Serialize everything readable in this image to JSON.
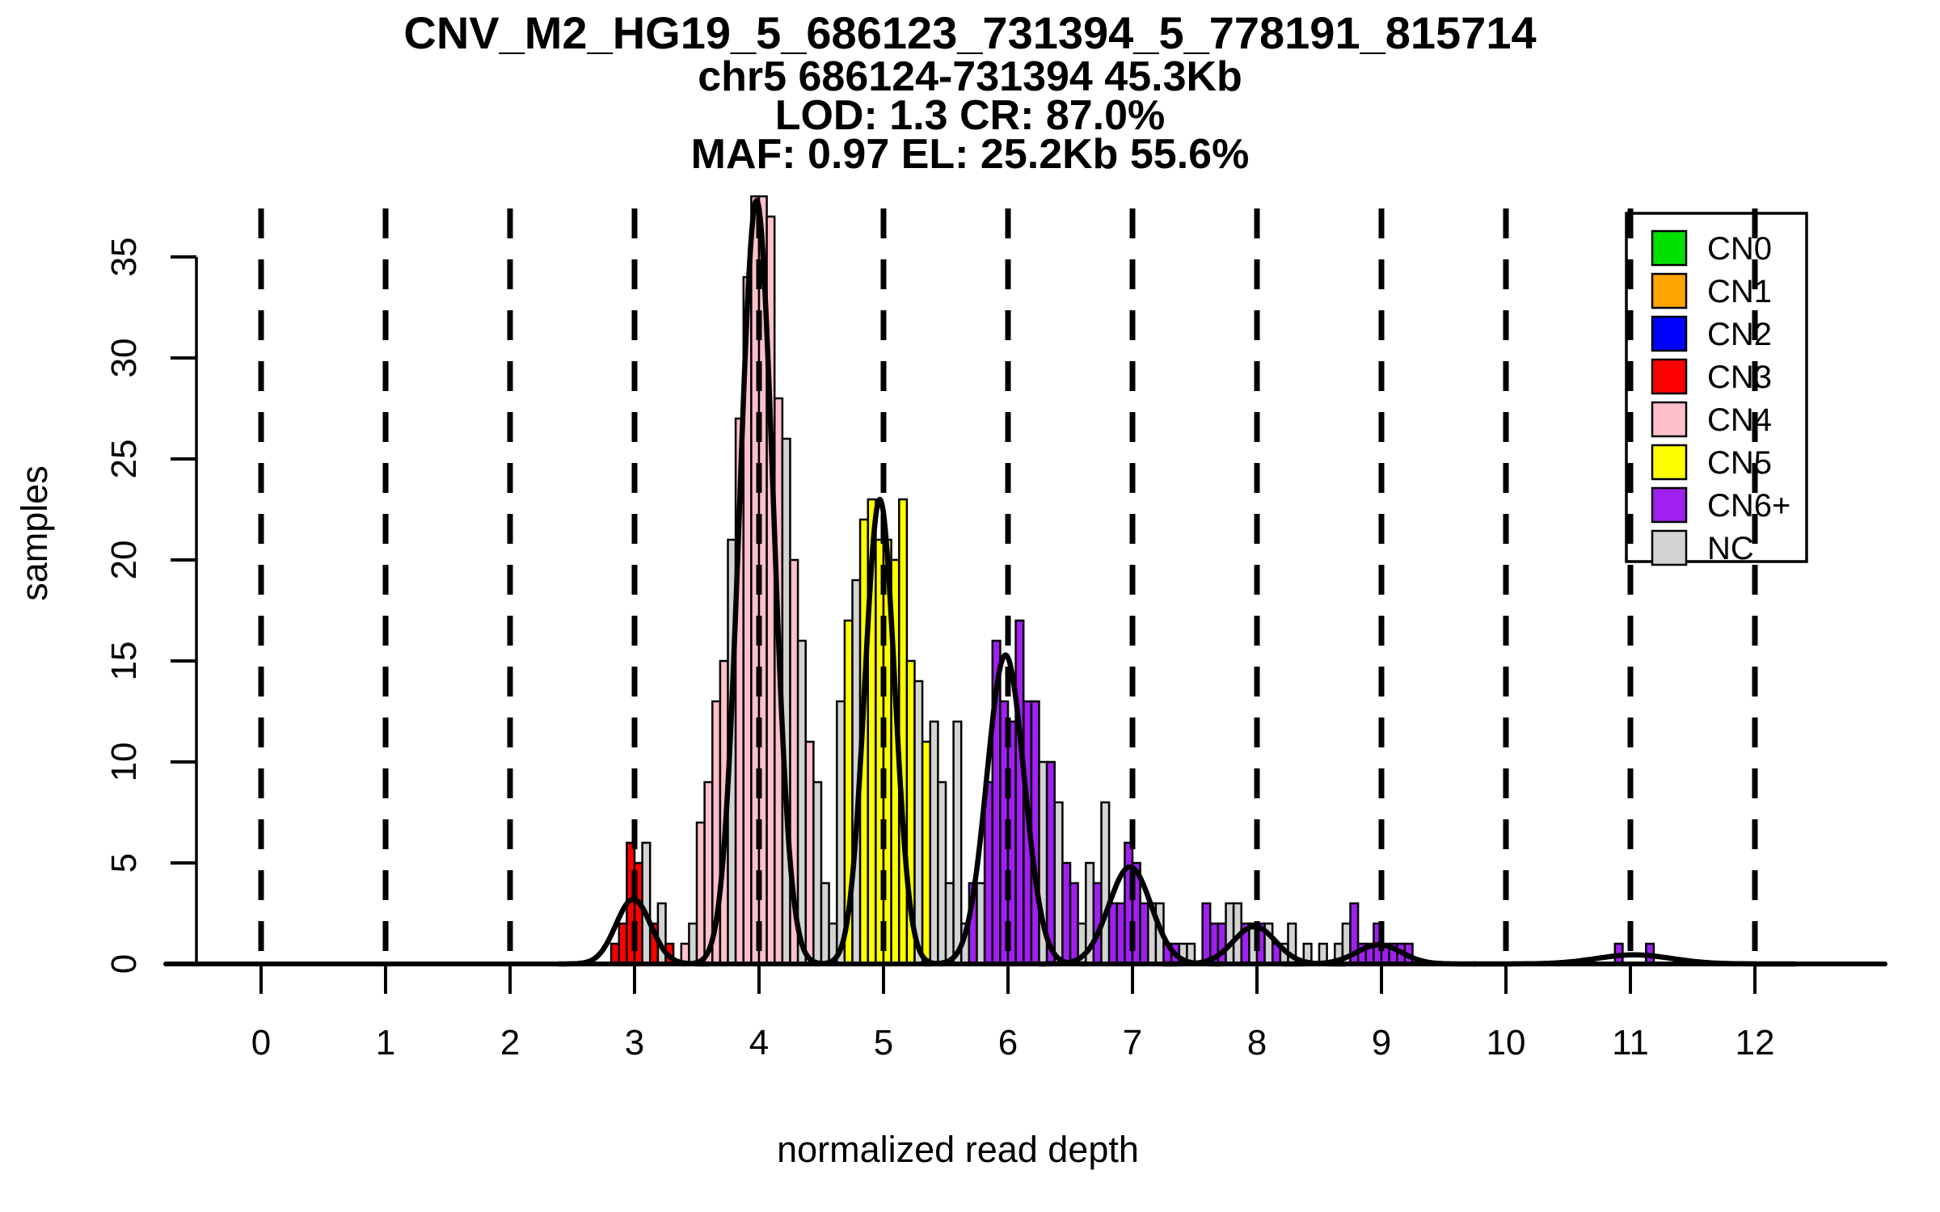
{
  "title": {
    "line1": "CNV_M2_HG19_5_686123_731394_5_778191_815714",
    "line2": "chr5 686124-731394 45.3Kb",
    "line3": "LOD: 1.3 CR: 87.0%",
    "line4": "MAF: 0.97 EL: 25.2Kb 55.6%"
  },
  "axes": {
    "x": {
      "label": "normalized read depth",
      "ticks": [
        0,
        1,
        2,
        3,
        4,
        5,
        6,
        7,
        8,
        9,
        10,
        11,
        12
      ]
    },
    "y": {
      "label": "samples",
      "ticks": [
        0,
        5,
        10,
        15,
        20,
        25,
        30,
        35
      ]
    }
  },
  "legend": {
    "items": [
      {
        "label": "CN0",
        "color": "#00E000"
      },
      {
        "label": "CN1",
        "color": "#FFA500"
      },
      {
        "label": "CN2",
        "color": "#0000FF"
      },
      {
        "label": "CN3",
        "color": "#FF0000"
      },
      {
        "label": "CN4",
        "color": "#FFC0CB"
      },
      {
        "label": "CN5",
        "color": "#FFFF00"
      },
      {
        "label": "CN6+",
        "color": "#A020F0"
      },
      {
        "label": "NC",
        "color": "#D3D3D3"
      }
    ]
  },
  "chart_data": {
    "type": "bar",
    "subtype": "histogram_with_density_curves",
    "xlabel": "normalized read depth",
    "ylabel": "samples",
    "xlim": [
      -0.8,
      13.1
    ],
    "ylim": [
      0,
      38.5
    ],
    "grid": "vertical dashed lines at every integer x from 0 to 12",
    "legend_position": "top-right",
    "bin_width": 0.0625,
    "colors": {
      "CN0": "#00E000",
      "CN1": "#FFA500",
      "CN2": "#0000FF",
      "CN3": "#FF0000",
      "CN4": "#FFC0CB",
      "CN5": "#FFFF00",
      "CN6": "#A020F0",
      "NC": "#D3D3D3",
      "curve": "#000000",
      "outline": "#000000"
    },
    "dashed_lines_x": [
      0,
      1,
      2,
      3,
      4,
      5,
      6,
      7,
      8,
      9,
      10,
      11,
      12
    ],
    "bars": [
      {
        "x": 2.8125,
        "h": 1,
        "cn": "CN3"
      },
      {
        "x": 2.875,
        "h": 2,
        "cn": "CN3"
      },
      {
        "x": 2.9375,
        "h": 6,
        "cn": "CN3"
      },
      {
        "x": 3.0,
        "h": 5,
        "cn": "CN3"
      },
      {
        "x": 3.0625,
        "h": 6,
        "cn": "NC"
      },
      {
        "x": 3.125,
        "h": 2,
        "cn": "CN3"
      },
      {
        "x": 3.1875,
        "h": 3,
        "cn": "NC"
      },
      {
        "x": 3.25,
        "h": 1,
        "cn": "CN3"
      },
      {
        "x": 3.375,
        "h": 1,
        "cn": "CN4"
      },
      {
        "x": 3.4375,
        "h": 2,
        "cn": "NC"
      },
      {
        "x": 3.5,
        "h": 7,
        "cn": "CN4"
      },
      {
        "x": 3.5625,
        "h": 9,
        "cn": "CN4"
      },
      {
        "x": 3.625,
        "h": 13,
        "cn": "CN4"
      },
      {
        "x": 3.6875,
        "h": 15,
        "cn": "CN4"
      },
      {
        "x": 3.75,
        "h": 21,
        "cn": "NC"
      },
      {
        "x": 3.8125,
        "h": 27,
        "cn": "CN4"
      },
      {
        "x": 3.875,
        "h": 34,
        "cn": "CN4"
      },
      {
        "x": 3.9375,
        "h": 38,
        "cn": "CN4"
      },
      {
        "x": 4.0,
        "h": 38,
        "cn": "CN4"
      },
      {
        "x": 4.0625,
        "h": 37,
        "cn": "CN4"
      },
      {
        "x": 4.125,
        "h": 28,
        "cn": "CN4"
      },
      {
        "x": 4.1875,
        "h": 26,
        "cn": "NC"
      },
      {
        "x": 4.25,
        "h": 20,
        "cn": "CN4"
      },
      {
        "x": 4.3125,
        "h": 16,
        "cn": "NC"
      },
      {
        "x": 4.375,
        "h": 11,
        "cn": "CN4"
      },
      {
        "x": 4.4375,
        "h": 9,
        "cn": "NC"
      },
      {
        "x": 4.5,
        "h": 4,
        "cn": "NC"
      },
      {
        "x": 4.5625,
        "h": 2,
        "cn": "NC"
      },
      {
        "x": 4.625,
        "h": 13,
        "cn": "NC"
      },
      {
        "x": 4.6875,
        "h": 17,
        "cn": "CN5"
      },
      {
        "x": 4.75,
        "h": 19,
        "cn": "NC"
      },
      {
        "x": 4.8125,
        "h": 22,
        "cn": "CN5"
      },
      {
        "x": 4.875,
        "h": 23,
        "cn": "CN5"
      },
      {
        "x": 4.9375,
        "h": 21,
        "cn": "CN5"
      },
      {
        "x": 5.0,
        "h": 21,
        "cn": "CN5"
      },
      {
        "x": 5.0625,
        "h": 20,
        "cn": "CN5"
      },
      {
        "x": 5.125,
        "h": 23,
        "cn": "CN5"
      },
      {
        "x": 5.1875,
        "h": 15,
        "cn": "CN5"
      },
      {
        "x": 5.25,
        "h": 14,
        "cn": "NC"
      },
      {
        "x": 5.3125,
        "h": 11,
        "cn": "CN5"
      },
      {
        "x": 5.375,
        "h": 12,
        "cn": "NC"
      },
      {
        "x": 5.4375,
        "h": 9,
        "cn": "NC"
      },
      {
        "x": 5.5,
        "h": 4,
        "cn": "NC"
      },
      {
        "x": 5.5625,
        "h": 12,
        "cn": "NC"
      },
      {
        "x": 5.625,
        "h": 2,
        "cn": "NC"
      },
      {
        "x": 5.6875,
        "h": 4,
        "cn": "CN6"
      },
      {
        "x": 5.75,
        "h": 4,
        "cn": "NC"
      },
      {
        "x": 5.8125,
        "h": 9,
        "cn": "CN6"
      },
      {
        "x": 5.875,
        "h": 16,
        "cn": "CN6"
      },
      {
        "x": 5.9375,
        "h": 13,
        "cn": "CN6"
      },
      {
        "x": 6.0,
        "h": 12,
        "cn": "CN6"
      },
      {
        "x": 6.0625,
        "h": 17,
        "cn": "CN6"
      },
      {
        "x": 6.125,
        "h": 13,
        "cn": "CN6"
      },
      {
        "x": 6.1875,
        "h": 13,
        "cn": "CN6"
      },
      {
        "x": 6.25,
        "h": 10,
        "cn": "NC"
      },
      {
        "x": 6.3125,
        "h": 10,
        "cn": "CN6"
      },
      {
        "x": 6.375,
        "h": 8,
        "cn": "NC"
      },
      {
        "x": 6.4375,
        "h": 5,
        "cn": "CN6"
      },
      {
        "x": 6.5,
        "h": 4,
        "cn": "CN6"
      },
      {
        "x": 6.5625,
        "h": 2,
        "cn": "NC"
      },
      {
        "x": 6.625,
        "h": 5,
        "cn": "NC"
      },
      {
        "x": 6.6875,
        "h": 4,
        "cn": "CN6"
      },
      {
        "x": 6.75,
        "h": 8,
        "cn": "NC"
      },
      {
        "x": 6.8125,
        "h": 3,
        "cn": "CN6"
      },
      {
        "x": 6.875,
        "h": 3,
        "cn": "CN6"
      },
      {
        "x": 6.9375,
        "h": 6,
        "cn": "CN6"
      },
      {
        "x": 7.0,
        "h": 5,
        "cn": "CN6"
      },
      {
        "x": 7.0625,
        "h": 3,
        "cn": "CN6"
      },
      {
        "x": 7.125,
        "h": 3,
        "cn": "NC"
      },
      {
        "x": 7.1875,
        "h": 3,
        "cn": "NC"
      },
      {
        "x": 7.25,
        "h": 1,
        "cn": "CN6"
      },
      {
        "x": 7.3125,
        "h": 1,
        "cn": "CN6"
      },
      {
        "x": 7.375,
        "h": 1,
        "cn": "NC"
      },
      {
        "x": 7.4375,
        "h": 1,
        "cn": "NC"
      },
      {
        "x": 7.5625,
        "h": 3,
        "cn": "CN6"
      },
      {
        "x": 7.625,
        "h": 2,
        "cn": "CN6"
      },
      {
        "x": 7.6875,
        "h": 2,
        "cn": "CN6"
      },
      {
        "x": 7.75,
        "h": 3,
        "cn": "NC"
      },
      {
        "x": 7.8125,
        "h": 3,
        "cn": "NC"
      },
      {
        "x": 7.875,
        "h": 2,
        "cn": "CN6"
      },
      {
        "x": 7.9375,
        "h": 2,
        "cn": "NC"
      },
      {
        "x": 8.0,
        "h": 2,
        "cn": "CN6"
      },
      {
        "x": 8.0625,
        "h": 2,
        "cn": "NC"
      },
      {
        "x": 8.125,
        "h": 1,
        "cn": "CN6"
      },
      {
        "x": 8.1875,
        "h": 1,
        "cn": "NC"
      },
      {
        "x": 8.25,
        "h": 2,
        "cn": "NC"
      },
      {
        "x": 8.375,
        "h": 1,
        "cn": "NC"
      },
      {
        "x": 8.5,
        "h": 1,
        "cn": "NC"
      },
      {
        "x": 8.625,
        "h": 1,
        "cn": "NC"
      },
      {
        "x": 8.6875,
        "h": 2,
        "cn": "NC"
      },
      {
        "x": 8.75,
        "h": 3,
        "cn": "CN6"
      },
      {
        "x": 8.8125,
        "h": 1,
        "cn": "CN6"
      },
      {
        "x": 8.875,
        "h": 1,
        "cn": "CN6"
      },
      {
        "x": 8.9375,
        "h": 2,
        "cn": "CN6"
      },
      {
        "x": 9.0,
        "h": 1,
        "cn": "CN6"
      },
      {
        "x": 9.0625,
        "h": 1,
        "cn": "CN6"
      },
      {
        "x": 9.125,
        "h": 1,
        "cn": "CN6"
      },
      {
        "x": 9.1875,
        "h": 1,
        "cn": "CN6"
      },
      {
        "x": 10.875,
        "h": 1,
        "cn": "CN6"
      },
      {
        "x": 11.125,
        "h": 1,
        "cn": "CN6"
      }
    ],
    "density_curves": [
      {
        "mu": 2.99,
        "sigma": 0.14,
        "amp": 3.2
      },
      {
        "mu": 3.98,
        "sigma": 0.135,
        "amp": 37.8
      },
      {
        "mu": 4.97,
        "sigma": 0.12,
        "amp": 23.0
      },
      {
        "mu": 5.98,
        "sigma": 0.15,
        "amp": 15.3
      },
      {
        "mu": 6.98,
        "sigma": 0.17,
        "amp": 4.8
      },
      {
        "mu": 7.98,
        "sigma": 0.17,
        "amp": 1.85
      },
      {
        "mu": 8.98,
        "sigma": 0.18,
        "amp": 0.95
      },
      {
        "mu": 11.03,
        "sigma": 0.3,
        "amp": 0.45
      }
    ]
  }
}
